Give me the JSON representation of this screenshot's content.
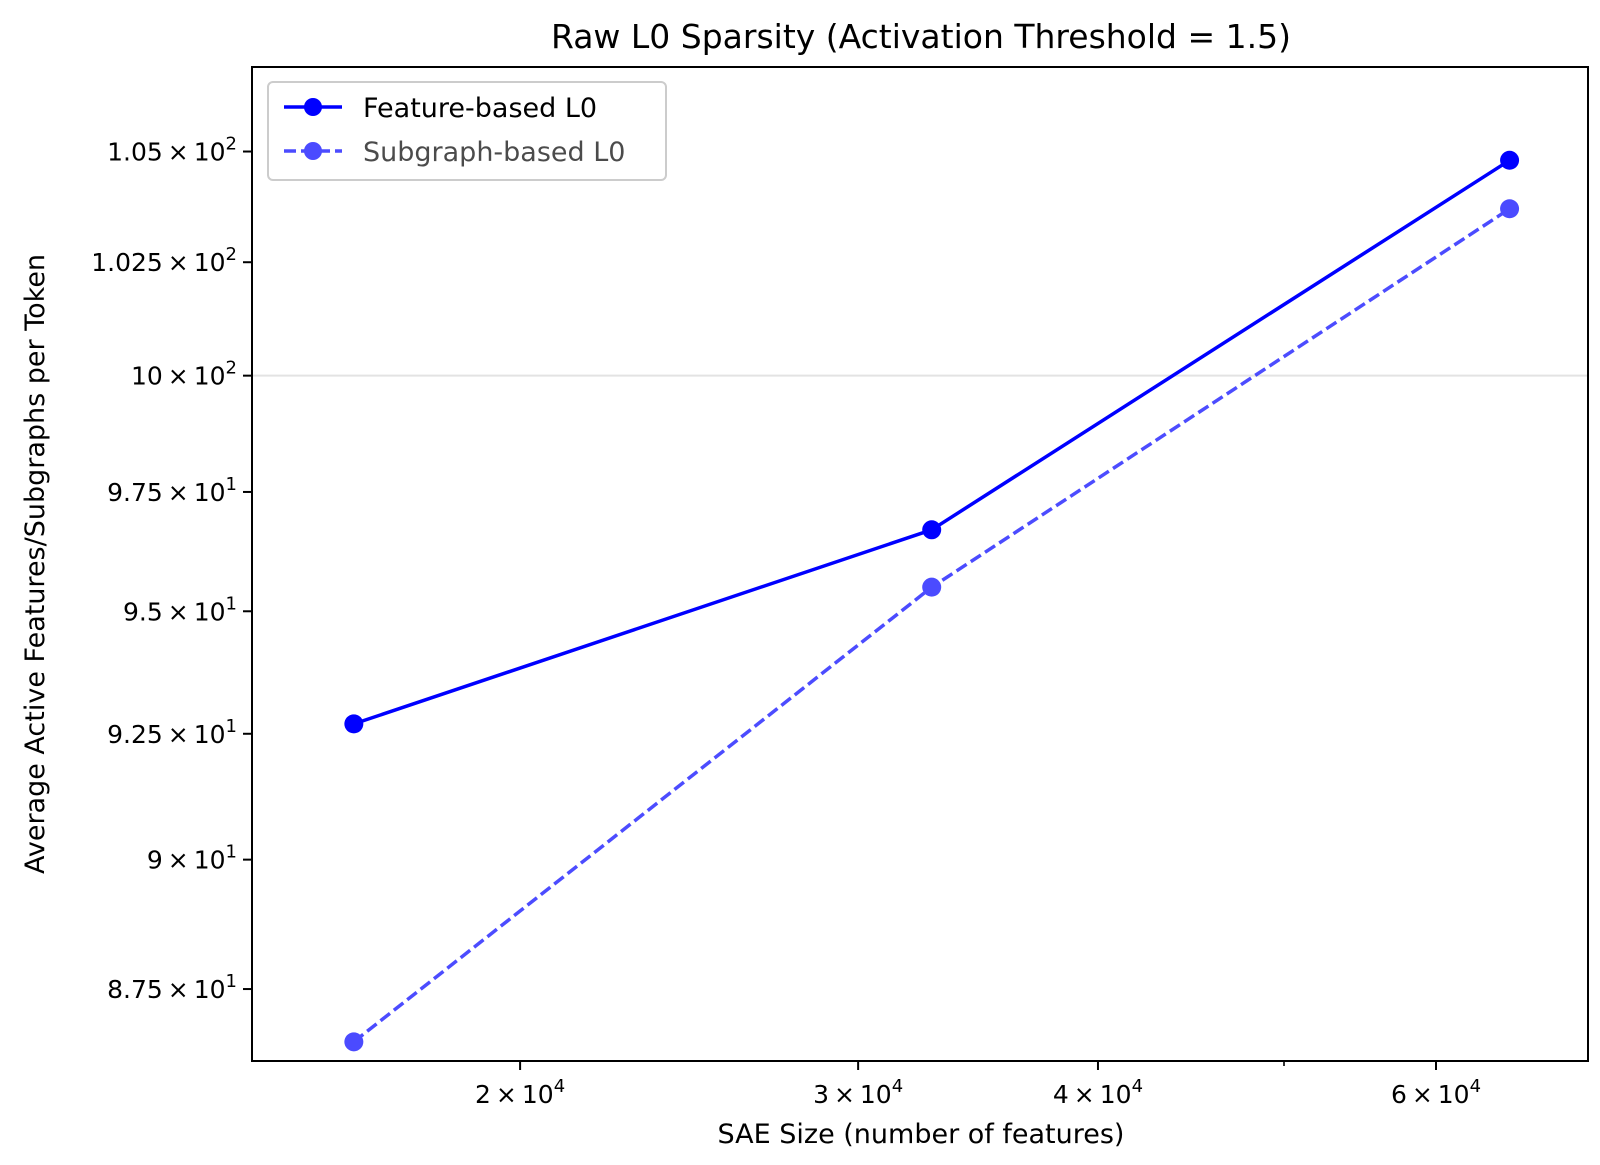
{
  "chart_data": {
    "type": "line",
    "title": "Raw L0 Sparsity (Activation Threshold = 1.5)",
    "xlabel": "SAE Size (number of features)",
    "ylabel": "Average Active Features/Subgraphs per Token",
    "x_scale": "log",
    "y_scale": "log",
    "xlim": [
      14500,
      72000
    ],
    "ylim": [
      86.14,
      106.95
    ],
    "x": [
      16384,
      32768,
      65536
    ],
    "series": [
      {
        "name": "Feature-based L0",
        "values": [
          92.7,
          96.7,
          104.8
        ],
        "color": "#0000ff",
        "linestyle": "solid",
        "opacity": 1.0
      },
      {
        "name": "Subgraph-based L0",
        "values": [
          86.5,
          95.5,
          103.7
        ],
        "color": "#0000ff",
        "linestyle": "dashed",
        "opacity": 0.7
      }
    ],
    "x_ticks": [
      {
        "value": 20000,
        "mantissa": "2",
        "exponent": "4"
      },
      {
        "value": 30000,
        "mantissa": "3",
        "exponent": "4"
      },
      {
        "value": 40000,
        "mantissa": "4",
        "exponent": "4"
      },
      {
        "value": 60000,
        "mantissa": "6",
        "exponent": "4"
      }
    ],
    "x_minor_ticks": [
      50000
    ],
    "y_ticks": [
      {
        "value": 87.5,
        "mantissa": "8.75",
        "exponent": "1"
      },
      {
        "value": 90,
        "mantissa": "9",
        "exponent": "1"
      },
      {
        "value": 92.5,
        "mantissa": "9.25",
        "exponent": "1"
      },
      {
        "value": 95,
        "mantissa": "9.5",
        "exponent": "1"
      },
      {
        "value": 97.5,
        "mantissa": "9.75",
        "exponent": "1"
      },
      {
        "value": 100,
        "mantissa": "10",
        "exponent": "2"
      },
      {
        "value": 102.5,
        "mantissa": "1.025",
        "exponent": "2"
      },
      {
        "value": 105,
        "mantissa": "1.05",
        "exponent": "2"
      }
    ],
    "times_symbol": "×",
    "grid": "horizontal line at 10^2",
    "legend": "top-left"
  }
}
